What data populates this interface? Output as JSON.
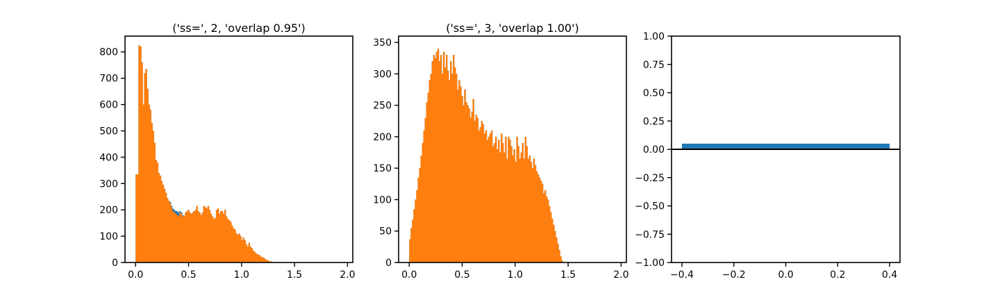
{
  "chart_data": [
    {
      "type": "bar",
      "title": "('ss=', 2, 'overlap 0.95')",
      "xlabel": "",
      "ylabel": "",
      "xlim": [
        -0.1,
        2.05
      ],
      "ylim": [
        0,
        860
      ],
      "xticks": [
        0.0,
        0.5,
        1.0,
        1.5,
        2.0
      ],
      "xtick_labels": [
        "0.0",
        "0.5",
        "1.0",
        "1.5",
        "2.0"
      ],
      "yticks": [
        0,
        100,
        200,
        300,
        400,
        500,
        600,
        700,
        800
      ],
      "ytick_labels": [
        "0",
        "100",
        "200",
        "300",
        "400",
        "500",
        "600",
        "700",
        "800"
      ],
      "bin_start": 0.0,
      "bin_width": 0.0133,
      "colors": {
        "series_1": "#1f77b4",
        "series_2": "#ff7f0e"
      },
      "series": [
        {
          "values": [
            335,
            335,
            825,
            820,
            760,
            600,
            720,
            735,
            660,
            600,
            580,
            530,
            500,
            455,
            390,
            380,
            340,
            330,
            310,
            295,
            280,
            265,
            245,
            235,
            230,
            215,
            205,
            200,
            195,
            195,
            190,
            195,
            190,
            180,
            175,
            190,
            195,
            200,
            190,
            185,
            190,
            195,
            200,
            215,
            195,
            190,
            180,
            190,
            215,
            210,
            205,
            215,
            200,
            185,
            175,
            165,
            170,
            200,
            205,
            185,
            195,
            195,
            185,
            200,
            175,
            165,
            160,
            155,
            140,
            130,
            125,
            110,
            105,
            110,
            100,
            85,
            95,
            85,
            70,
            60,
            75,
            60,
            55,
            45,
            40,
            35,
            30,
            30,
            25,
            20,
            20,
            15,
            10,
            10,
            5,
            5,
            3,
            2
          ]
        },
        {
          "values": [
            335,
            335,
            825,
            820,
            760,
            600,
            720,
            735,
            660,
            600,
            580,
            530,
            500,
            455,
            390,
            380,
            340,
            330,
            310,
            295,
            280,
            265,
            245,
            235,
            225,
            210,
            195,
            190,
            185,
            180,
            175,
            190,
            185,
            175,
            175,
            190,
            195,
            200,
            190,
            185,
            190,
            195,
            200,
            215,
            195,
            190,
            180,
            190,
            215,
            210,
            205,
            215,
            200,
            185,
            175,
            165,
            170,
            200,
            205,
            185,
            195,
            195,
            185,
            200,
            175,
            165,
            160,
            155,
            140,
            130,
            125,
            110,
            105,
            110,
            100,
            85,
            95,
            85,
            70,
            60,
            75,
            60,
            55,
            45,
            40,
            35,
            30,
            30,
            25,
            20,
            20,
            15,
            10,
            10,
            5,
            5,
            3,
            2
          ]
        }
      ]
    },
    {
      "type": "bar",
      "title": "('ss=', 3, 'overlap 1.00')",
      "xlabel": "",
      "ylabel": "",
      "xlim": [
        -0.1,
        2.05
      ],
      "ylim": [
        0,
        360
      ],
      "xticks": [
        0.0,
        0.5,
        1.0,
        1.5,
        2.0
      ],
      "xtick_labels": [
        "0.0",
        "0.5",
        "1.0",
        "1.5",
        "2.0"
      ],
      "yticks": [
        0,
        50,
        100,
        150,
        200,
        250,
        300,
        350
      ],
      "ytick_labels": [
        "0",
        "50",
        "100",
        "150",
        "200",
        "250",
        "300",
        "350"
      ],
      "bin_start": 0.0,
      "bin_width": 0.0133,
      "colors": {
        "series_1": "#1f77b4",
        "series_2": "#ff7f0e"
      },
      "series": [
        {
          "values": [
            37,
            55,
            68,
            85,
            100,
            115,
            135,
            150,
            170,
            190,
            210,
            230,
            255,
            270,
            290,
            300,
            320,
            330,
            325,
            335,
            340,
            320,
            330,
            300,
            335,
            310,
            330,
            305,
            290,
            320,
            300,
            330,
            310,
            300,
            275,
            290,
            280,
            265,
            250,
            275,
            255,
            250,
            245,
            230,
            240,
            260,
            225,
            235,
            230,
            210,
            215,
            225,
            220,
            205,
            210,
            195,
            200,
            205,
            210,
            185,
            190,
            200,
            180,
            195,
            175,
            205,
            190,
            175,
            200,
            165,
            200,
            195,
            185,
            170,
            180,
            160,
            200,
            185,
            165,
            175,
            190,
            165,
            200,
            185,
            165,
            170,
            160,
            150,
            165,
            155,
            145,
            140,
            135,
            130,
            125,
            110,
            115,
            105,
            100,
            90,
            80,
            70,
            60,
            50,
            40,
            30,
            20,
            10,
            3
          ]
        },
        {
          "values": [
            37,
            55,
            68,
            85,
            100,
            115,
            135,
            150,
            170,
            190,
            210,
            230,
            255,
            270,
            290,
            300,
            320,
            330,
            325,
            335,
            340,
            320,
            330,
            300,
            335,
            310,
            330,
            305,
            290,
            320,
            300,
            330,
            310,
            300,
            275,
            290,
            280,
            265,
            250,
            275,
            255,
            250,
            245,
            230,
            240,
            260,
            225,
            235,
            230,
            210,
            215,
            225,
            220,
            205,
            210,
            195,
            200,
            205,
            210,
            185,
            190,
            200,
            180,
            195,
            175,
            205,
            190,
            175,
            200,
            165,
            200,
            195,
            185,
            170,
            180,
            160,
            200,
            185,
            165,
            175,
            190,
            165,
            200,
            185,
            165,
            170,
            160,
            150,
            165,
            155,
            145,
            140,
            135,
            130,
            125,
            110,
            115,
            105,
            100,
            90,
            80,
            70,
            60,
            50,
            40,
            30,
            20,
            10,
            3
          ]
        }
      ]
    },
    {
      "type": "bar",
      "title": "",
      "xlabel": "",
      "ylabel": "",
      "xlim": [
        -0.44,
        0.44
      ],
      "ylim": [
        -1.0,
        1.0
      ],
      "xticks": [
        -0.4,
        -0.2,
        0.0,
        0.2,
        0.4
      ],
      "xtick_labels": [
        "−0.4",
        "−0.2",
        "0.0",
        "0.2",
        "0.4"
      ],
      "yticks": [
        -1.0,
        -0.75,
        -0.5,
        -0.25,
        0.0,
        0.25,
        0.5,
        0.75,
        1.0
      ],
      "ytick_labels": [
        "−1.00",
        "−0.75",
        "−0.50",
        "−0.25",
        "0.00",
        "0.25",
        "0.50",
        "0.75",
        "1.00"
      ],
      "categories": [
        "0"
      ],
      "values": [
        0.05
      ],
      "bar_extent": [
        -0.4,
        0.4
      ],
      "zero_line": true,
      "colors": {
        "bar": "#1f77b4",
        "zero_line": "#000000"
      }
    }
  ]
}
